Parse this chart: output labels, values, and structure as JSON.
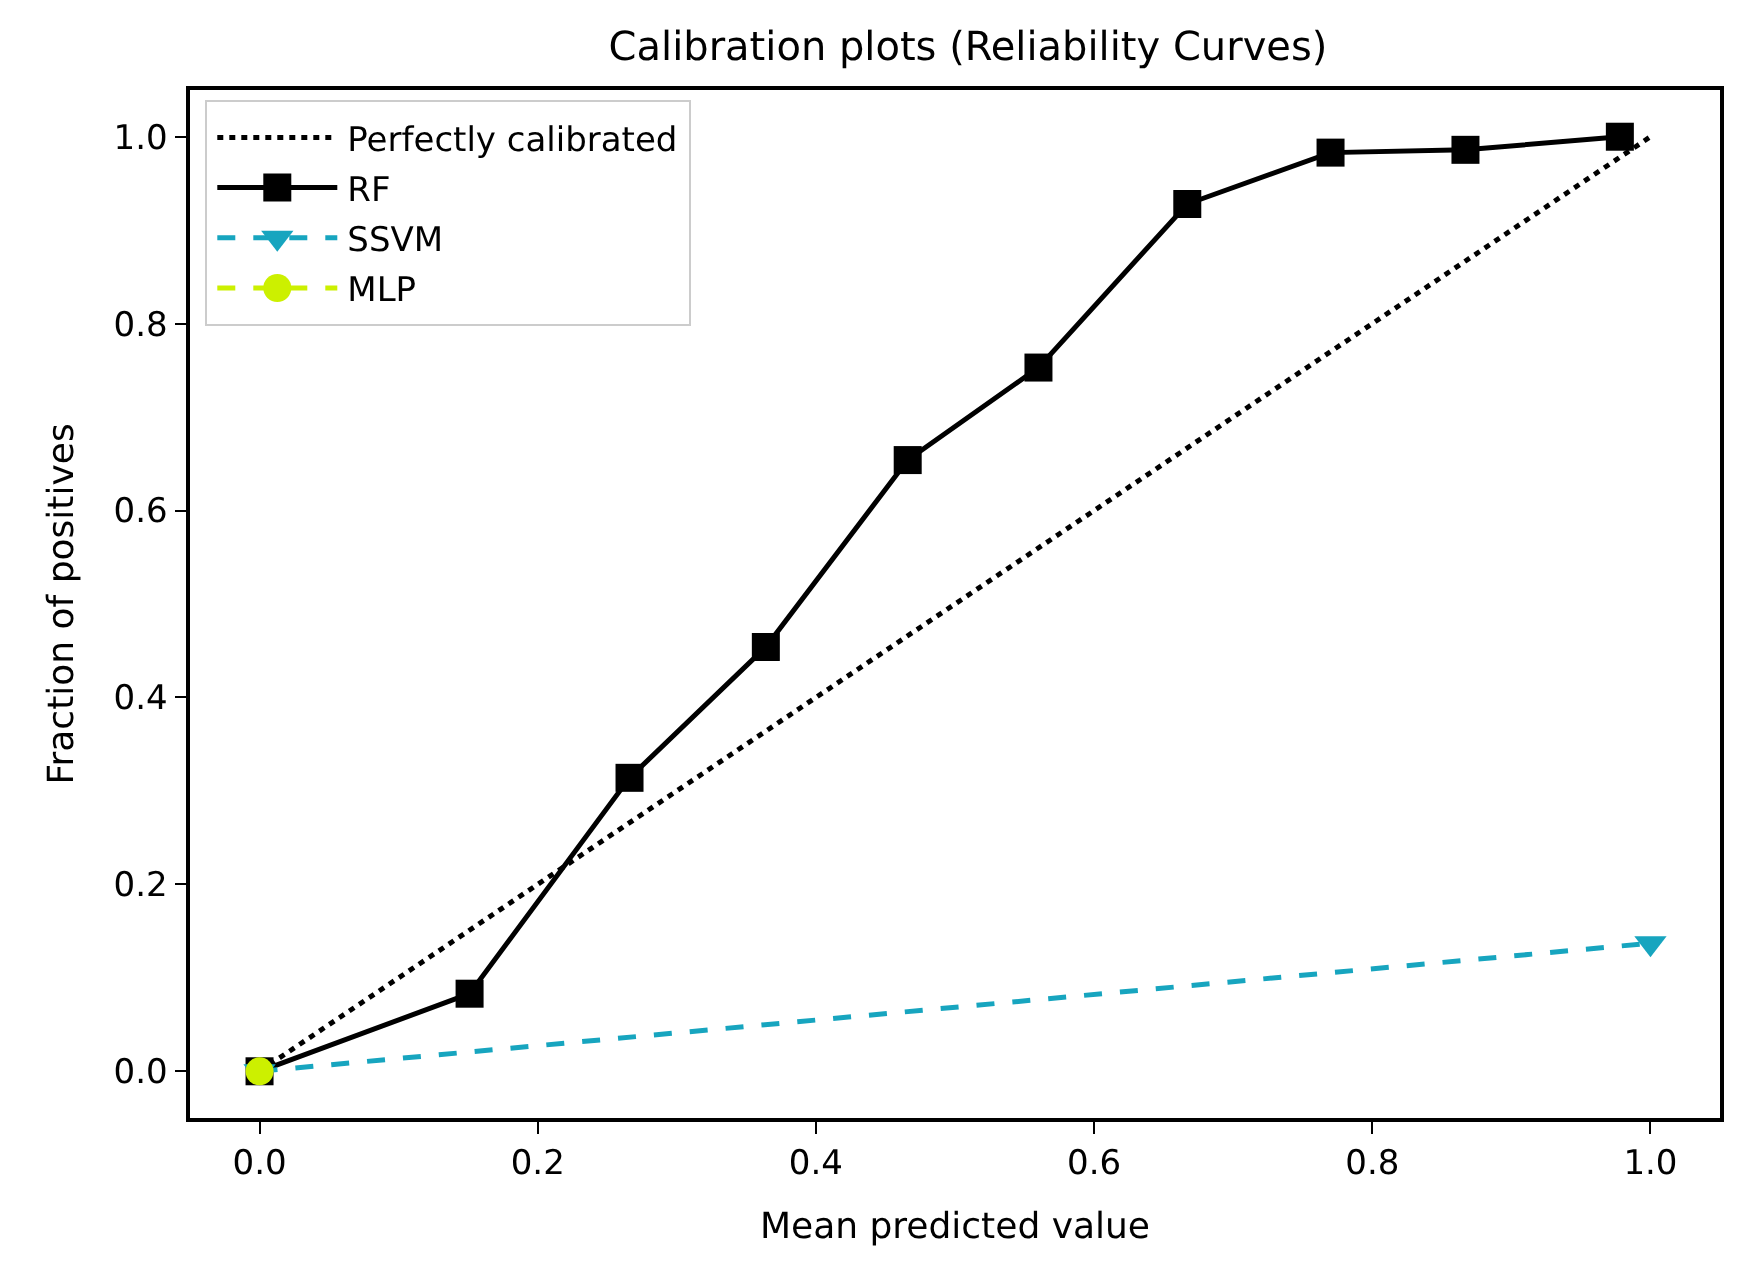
{
  "chart_data": {
    "type": "line",
    "title": "Calibration plots (Reliability Curves)",
    "xlabel": "Mean predicted value",
    "ylabel": "Fraction of positives",
    "xlim": [
      -0.05,
      1.05
    ],
    "ylim": [
      -0.05,
      1.05
    ],
    "xticks": [
      {
        "value": 0,
        "label": "0.0"
      },
      0.2,
      0.4,
      0.6,
      0.8,
      {
        "value": 1,
        "label": "1.0"
      }
    ],
    "yticks": [
      {
        "value": 0,
        "label": "0.0"
      },
      0.2,
      0.4,
      0.6,
      0.8,
      {
        "value": 1,
        "label": "1.0"
      }
    ],
    "grid": false,
    "legend": "top left",
    "series": [
      {
        "name": "Perfectly calibrated",
        "color": "#000000",
        "x": [
          0,
          1
        ],
        "values": [
          0,
          1
        ],
        "line_style": "dotted"
      },
      {
        "name": "RF",
        "color": "#000000",
        "x": [
          0.0,
          0.151,
          0.266,
          0.364,
          0.466,
          0.56,
          0.667,
          0.77,
          0.867,
          0.978
        ],
        "values": [
          0.0,
          0.083,
          0.314,
          0.454,
          0.654,
          0.753,
          0.928,
          0.983,
          0.986,
          1.0
        ],
        "line_style": "solid",
        "marker": "square"
      },
      {
        "name": "SSVM",
        "color": "#17a5bf",
        "x": [
          0.0,
          1.0
        ],
        "values": [
          0.0,
          0.137
        ],
        "line_style": "dashed",
        "marker": "triangle"
      },
      {
        "name": "MLP",
        "color": "#ccf000",
        "x": [
          0.0
        ],
        "values": [
          0.0
        ],
        "line_style": "dashed",
        "marker": "circle"
      }
    ]
  }
}
